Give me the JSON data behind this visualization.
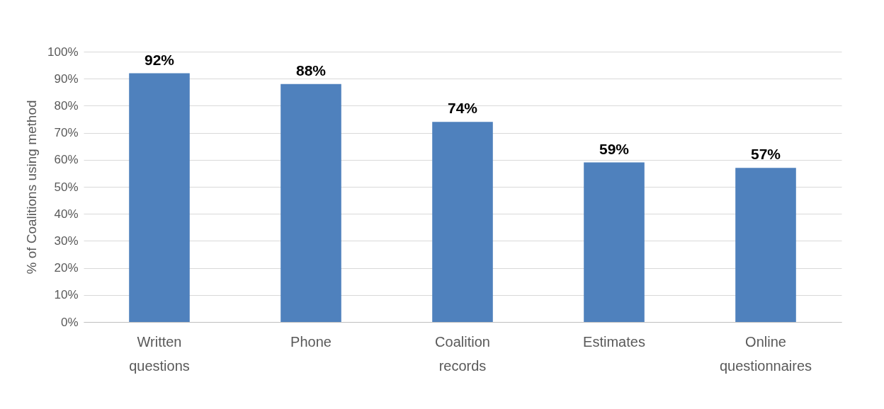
{
  "chart_data": {
    "type": "bar",
    "ylabel": "% of Coalitions using method",
    "categories": [
      "Written questions",
      "Phone",
      "Coalition records",
      "Estimates",
      "Online questionnaires"
    ],
    "values": [
      92,
      88,
      74,
      59,
      57
    ],
    "value_labels": [
      "92%",
      "88%",
      "74%",
      "59%",
      "57%"
    ],
    "color": "#4f81bd",
    "ylim": [
      0,
      100
    ],
    "yticks": [
      {
        "value": 0,
        "label": "0%"
      },
      {
        "value": 10,
        "label": "10%"
      },
      {
        "value": 20,
        "label": "20%"
      },
      {
        "value": 30,
        "label": "30%"
      },
      {
        "value": 40,
        "label": "40%"
      },
      {
        "value": 50,
        "label": "50%"
      },
      {
        "value": 60,
        "label": "60%"
      },
      {
        "value": 70,
        "label": "70%"
      },
      {
        "value": 80,
        "label": "80%"
      },
      {
        "value": 90,
        "label": "90%"
      },
      {
        "value": 100,
        "label": "100%"
      }
    ],
    "grid": "y"
  }
}
